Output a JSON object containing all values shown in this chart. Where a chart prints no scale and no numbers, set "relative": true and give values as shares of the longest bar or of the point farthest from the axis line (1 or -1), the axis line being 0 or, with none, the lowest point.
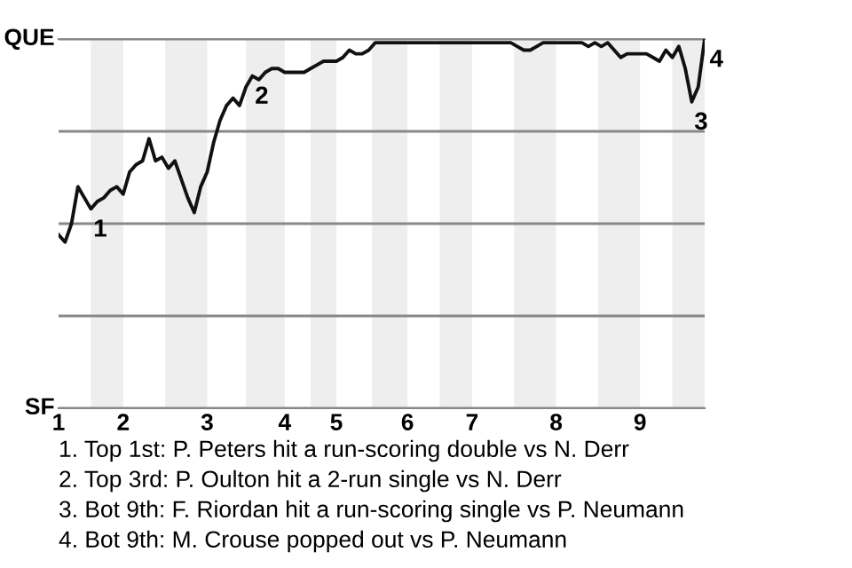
{
  "chart_data": {
    "type": "line",
    "relative": true,
    "categories": [
      "1",
      null,
      null,
      null,
      null,
      null,
      null,
      null,
      null,
      null,
      "2",
      null,
      null,
      null,
      null,
      null,
      null,
      null,
      null,
      null,
      null,
      null,
      null,
      "3",
      null,
      null,
      null,
      null,
      null,
      null,
      null,
      null,
      null,
      null,
      null,
      "4",
      null,
      null,
      null,
      null,
      null,
      null,
      null,
      "5",
      null,
      null,
      null,
      null,
      null,
      null,
      null,
      null,
      null,
      null,
      "6",
      null,
      null,
      null,
      null,
      null,
      null,
      null,
      null,
      null,
      "7",
      null,
      null,
      null,
      null,
      null,
      null,
      null,
      null,
      null,
      null,
      null,
      null,
      "8",
      null,
      null,
      null,
      null,
      null,
      null,
      null,
      null,
      null,
      null,
      null,
      null,
      "9",
      null,
      null,
      null,
      null,
      null,
      null,
      null,
      null,
      null,
      null
    ],
    "series": [
      {
        "color": "#111111",
        "values": [
          0.47,
          0.45,
          0.5,
          0.6,
          0.57,
          0.54,
          0.56,
          0.57,
          0.59,
          0.6,
          0.58,
          0.64,
          0.66,
          0.67,
          0.73,
          0.67,
          0.68,
          0.65,
          0.67,
          0.62,
          0.57,
          0.53,
          0.6,
          0.64,
          0.72,
          0.78,
          0.82,
          0.84,
          0.82,
          0.87,
          0.9,
          0.89,
          0.91,
          0.92,
          0.92,
          0.91,
          0.91,
          0.91,
          0.91,
          0.92,
          0.93,
          0.94,
          0.94,
          0.94,
          0.95,
          0.97,
          0.96,
          0.96,
          0.97,
          0.99,
          0.99,
          0.99,
          0.99,
          0.99,
          0.99,
          0.99,
          0.99,
          0.99,
          0.99,
          0.99,
          0.99,
          0.99,
          0.99,
          0.99,
          0.99,
          0.99,
          0.99,
          0.99,
          0.99,
          0.99,
          0.99,
          0.98,
          0.97,
          0.97,
          0.98,
          0.99,
          0.99,
          0.99,
          0.99,
          0.99,
          0.99,
          0.99,
          0.98,
          0.99,
          0.98,
          0.99,
          0.97,
          0.95,
          0.96,
          0.96,
          0.96,
          0.96,
          0.95,
          0.94,
          0.97,
          0.95,
          0.98,
          0.92,
          0.83,
          0.87,
          1.0
        ]
      }
    ],
    "grid": "y",
    "marker": "none",
    "line_style": "solid",
    "annotations": [
      "QUE",
      "SF",
      "4",
      {
        "text": "1",
        "y": 0.54
      },
      {
        "text": "2",
        "y": 0.9
      },
      {
        "text": "3",
        "y": 0.83
      },
      "1. Top 1st: P. Peters hit a run-scoring double vs N. Derr",
      "2. Top 3rd: P. Oulton hit a 2-run single vs N. Derr",
      "3. Bot 9th: F. Riordan hit a run-scoring single vs P. Neumann",
      "4. Bot 9th: M. Crouse popped out vs P. Neumann"
    ]
  }
}
